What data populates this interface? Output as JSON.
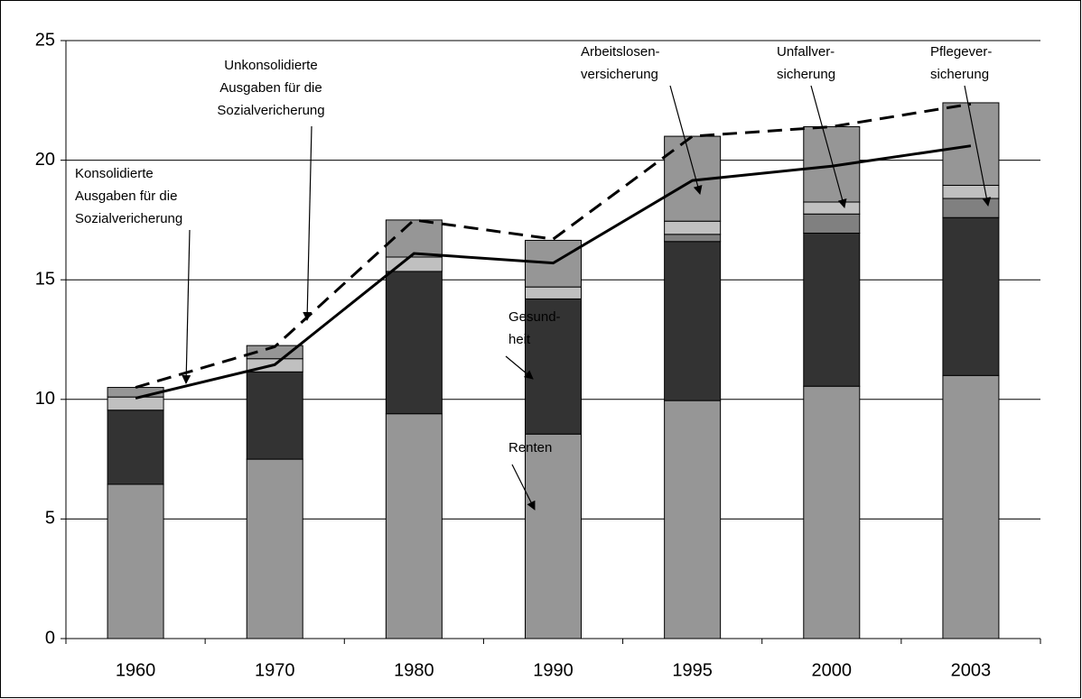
{
  "chart_data": {
    "type": "stacked_bar_line",
    "categories": [
      "1960",
      "1970",
      "1980",
      "1990",
      "1995",
      "2000",
      "2003"
    ],
    "ylim": [
      0,
      25
    ],
    "yticks": [
      0,
      5,
      10,
      15,
      20,
      25
    ],
    "grid": true,
    "series": [
      {
        "name": [
          "Renten"
        ],
        "color": "#969696",
        "values": [
          6.45,
          7.5,
          9.4,
          8.55,
          9.95,
          10.55,
          11.0
        ]
      },
      {
        "name": [
          "Gesund-",
          "heit"
        ],
        "color": "#333333",
        "values": [
          3.1,
          3.65,
          5.95,
          5.65,
          6.65,
          6.4,
          6.6
        ]
      },
      {
        "name": [
          "Pflegever-",
          "sicherung"
        ],
        "color": "#808080",
        "values": [
          0,
          0,
          0,
          0,
          0.3,
          0.8,
          0.8
        ]
      },
      {
        "name": [
          "Unfallver-",
          "sicherung"
        ],
        "color": "#c0c0c0",
        "values": [
          0.55,
          0.55,
          0.6,
          0.5,
          0.55,
          0.5,
          0.55
        ]
      },
      {
        "name": [
          "Arbeitslosen-",
          "versicherung"
        ],
        "color": "#969696",
        "values": [
          0.4,
          0.55,
          1.55,
          1.95,
          3.55,
          3.15,
          3.45
        ]
      }
    ],
    "lines": [
      {
        "name": [
          "Konsolidierte",
          "Ausgaben für die",
          "Sozialvericherung"
        ],
        "color": "#000000",
        "dashed": false,
        "values": [
          10.05,
          11.45,
          16.1,
          15.7,
          19.15,
          19.75,
          20.6
        ]
      },
      {
        "name": [
          "Unkonsolidierte",
          "Ausgaben für die",
          "Sozialvericherung"
        ],
        "color": "#000000",
        "dashed": true,
        "values": [
          10.5,
          12.2,
          17.5,
          16.7,
          21.0,
          21.4,
          22.35
        ]
      }
    ]
  }
}
